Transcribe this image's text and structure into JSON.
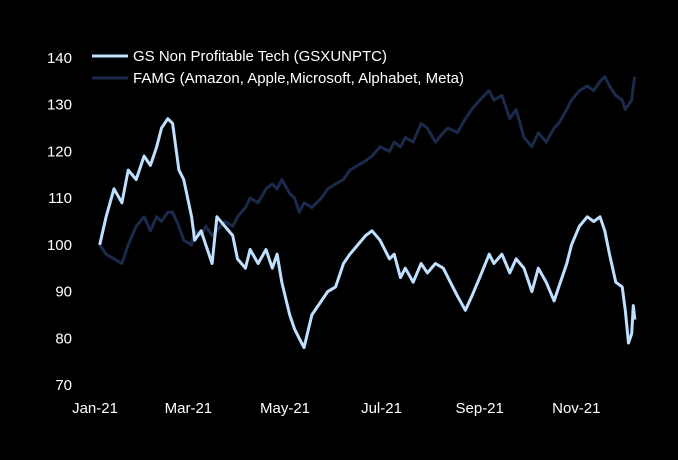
{
  "chart_data": {
    "type": "line",
    "title": "",
    "xlabel": "",
    "ylabel": "",
    "ylim": [
      70,
      140
    ],
    "xlim": [
      "2021-01-01",
      "2021-12-10"
    ],
    "x_ticks": [
      "Jan-21",
      "Mar-21",
      "May-21",
      "Jul-21",
      "Sep-21",
      "Nov-21"
    ],
    "y_ticks": [
      70,
      80,
      90,
      100,
      110,
      120,
      130,
      140
    ],
    "grid": false,
    "legend_position": "top-left",
    "background": "#000000",
    "series": [
      {
        "name": "GS Non Profitable Tech (GSXUNPTC)",
        "color": "#bfe0ff",
        "points": [
          [
            "2021-01-04",
            100
          ],
          [
            "2021-01-08",
            106
          ],
          [
            "2021-01-13",
            112
          ],
          [
            "2021-01-18",
            109
          ],
          [
            "2021-01-22",
            116
          ],
          [
            "2021-01-27",
            114
          ],
          [
            "2021-02-01",
            119
          ],
          [
            "2021-02-05",
            117
          ],
          [
            "2021-02-09",
            121
          ],
          [
            "2021-02-12",
            125
          ],
          [
            "2021-02-16",
            127
          ],
          [
            "2021-02-19",
            126
          ],
          [
            "2021-02-23",
            116
          ],
          [
            "2021-02-26",
            114
          ],
          [
            "2021-03-03",
            106
          ],
          [
            "2021-03-05",
            101
          ],
          [
            "2021-03-09",
            103
          ],
          [
            "2021-03-12",
            100
          ],
          [
            "2021-03-16",
            96
          ],
          [
            "2021-03-19",
            106
          ],
          [
            "2021-03-24",
            104
          ],
          [
            "2021-03-29",
            102
          ],
          [
            "2021-04-01",
            97
          ],
          [
            "2021-04-06",
            95
          ],
          [
            "2021-04-09",
            99
          ],
          [
            "2021-04-14",
            96
          ],
          [
            "2021-04-19",
            99
          ],
          [
            "2021-04-23",
            95
          ],
          [
            "2021-04-26",
            98
          ],
          [
            "2021-04-29",
            92
          ],
          [
            "2021-05-04",
            85
          ],
          [
            "2021-05-07",
            82
          ],
          [
            "2021-05-10",
            80
          ],
          [
            "2021-05-13",
            78
          ],
          [
            "2021-05-18",
            85
          ],
          [
            "2021-05-24",
            88
          ],
          [
            "2021-05-28",
            90
          ],
          [
            "2021-06-02",
            91
          ],
          [
            "2021-06-07",
            96
          ],
          [
            "2021-06-11",
            98
          ],
          [
            "2021-06-16",
            100
          ],
          [
            "2021-06-21",
            102
          ],
          [
            "2021-06-25",
            103
          ],
          [
            "2021-06-30",
            101
          ],
          [
            "2021-07-06",
            97
          ],
          [
            "2021-07-09",
            98
          ],
          [
            "2021-07-13",
            93
          ],
          [
            "2021-07-16",
            95
          ],
          [
            "2021-07-21",
            92
          ],
          [
            "2021-07-26",
            96
          ],
          [
            "2021-07-30",
            94
          ],
          [
            "2021-08-04",
            96
          ],
          [
            "2021-08-09",
            95
          ],
          [
            "2021-08-12",
            93
          ],
          [
            "2021-08-18",
            89
          ],
          [
            "2021-08-23",
            86
          ],
          [
            "2021-08-27",
            89
          ],
          [
            "2021-09-01",
            93
          ],
          [
            "2021-09-07",
            98
          ],
          [
            "2021-09-10",
            96
          ],
          [
            "2021-09-15",
            98
          ],
          [
            "2021-09-20",
            94
          ],
          [
            "2021-09-24",
            97
          ],
          [
            "2021-09-29",
            95
          ],
          [
            "2021-10-04",
            90
          ],
          [
            "2021-10-08",
            95
          ],
          [
            "2021-10-13",
            92
          ],
          [
            "2021-10-18",
            88
          ],
          [
            "2021-10-21",
            91
          ],
          [
            "2021-10-26",
            96
          ],
          [
            "2021-10-29",
            100
          ],
          [
            "2021-11-03",
            104
          ],
          [
            "2021-11-08",
            106
          ],
          [
            "2021-11-12",
            105
          ],
          [
            "2021-11-16",
            106
          ],
          [
            "2021-11-19",
            103
          ],
          [
            "2021-11-22",
            98
          ],
          [
            "2021-11-26",
            92
          ],
          [
            "2021-11-30",
            91
          ],
          [
            "2021-12-02",
            86
          ],
          [
            "2021-12-04",
            79
          ],
          [
            "2021-12-06",
            81
          ],
          [
            "2021-12-07",
            87
          ],
          [
            "2021-12-08",
            84
          ]
        ]
      },
      {
        "name": "FAMG (Amazon, Apple,Microsoft, Alphabet, Meta)",
        "color": "#1b2a4a",
        "points": [
          [
            "2021-01-04",
            100
          ],
          [
            "2021-01-08",
            98
          ],
          [
            "2021-01-13",
            97
          ],
          [
            "2021-01-18",
            96
          ],
          [
            "2021-01-22",
            100
          ],
          [
            "2021-01-27",
            104
          ],
          [
            "2021-02-01",
            106
          ],
          [
            "2021-02-05",
            103
          ],
          [
            "2021-02-09",
            106
          ],
          [
            "2021-02-12",
            105
          ],
          [
            "2021-02-16",
            107
          ],
          [
            "2021-02-19",
            107
          ],
          [
            "2021-02-23",
            104
          ],
          [
            "2021-02-26",
            101
          ],
          [
            "2021-03-03",
            100
          ],
          [
            "2021-03-05",
            103
          ],
          [
            "2021-03-09",
            102
          ],
          [
            "2021-03-12",
            104
          ],
          [
            "2021-03-16",
            102
          ],
          [
            "2021-03-19",
            103
          ],
          [
            "2021-03-24",
            105
          ],
          [
            "2021-03-29",
            104
          ],
          [
            "2021-04-01",
            106
          ],
          [
            "2021-04-06",
            108
          ],
          [
            "2021-04-09",
            110
          ],
          [
            "2021-04-14",
            109
          ],
          [
            "2021-04-19",
            112
          ],
          [
            "2021-04-23",
            113
          ],
          [
            "2021-04-26",
            112
          ],
          [
            "2021-04-29",
            114
          ],
          [
            "2021-05-04",
            111
          ],
          [
            "2021-05-07",
            110
          ],
          [
            "2021-05-10",
            107
          ],
          [
            "2021-05-13",
            109
          ],
          [
            "2021-05-18",
            108
          ],
          [
            "2021-05-24",
            110
          ],
          [
            "2021-05-28",
            112
          ],
          [
            "2021-06-02",
            113
          ],
          [
            "2021-06-07",
            114
          ],
          [
            "2021-06-11",
            116
          ],
          [
            "2021-06-16",
            117
          ],
          [
            "2021-06-21",
            118
          ],
          [
            "2021-06-25",
            119
          ],
          [
            "2021-06-30",
            121
          ],
          [
            "2021-07-06",
            120
          ],
          [
            "2021-07-09",
            122
          ],
          [
            "2021-07-13",
            121
          ],
          [
            "2021-07-16",
            123
          ],
          [
            "2021-07-21",
            122
          ],
          [
            "2021-07-26",
            126
          ],
          [
            "2021-07-30",
            125
          ],
          [
            "2021-08-04",
            122
          ],
          [
            "2021-08-09",
            124
          ],
          [
            "2021-08-12",
            125
          ],
          [
            "2021-08-18",
            124
          ],
          [
            "2021-08-23",
            127
          ],
          [
            "2021-08-27",
            129
          ],
          [
            "2021-09-01",
            131
          ],
          [
            "2021-09-07",
            133
          ],
          [
            "2021-09-10",
            131
          ],
          [
            "2021-09-15",
            132
          ],
          [
            "2021-09-20",
            127
          ],
          [
            "2021-09-24",
            129
          ],
          [
            "2021-09-29",
            123
          ],
          [
            "2021-10-04",
            121
          ],
          [
            "2021-10-08",
            124
          ],
          [
            "2021-10-13",
            122
          ],
          [
            "2021-10-18",
            125
          ],
          [
            "2021-10-21",
            126
          ],
          [
            "2021-10-26",
            129
          ],
          [
            "2021-10-29",
            131
          ],
          [
            "2021-11-03",
            133
          ],
          [
            "2021-11-08",
            134
          ],
          [
            "2021-11-12",
            133
          ],
          [
            "2021-11-16",
            135
          ],
          [
            "2021-11-19",
            136
          ],
          [
            "2021-11-22",
            134
          ],
          [
            "2021-11-26",
            132
          ],
          [
            "2021-11-30",
            131
          ],
          [
            "2021-12-02",
            129
          ],
          [
            "2021-12-04",
            130
          ],
          [
            "2021-12-06",
            131
          ],
          [
            "2021-12-07",
            134
          ],
          [
            "2021-12-08",
            136
          ]
        ]
      }
    ]
  }
}
